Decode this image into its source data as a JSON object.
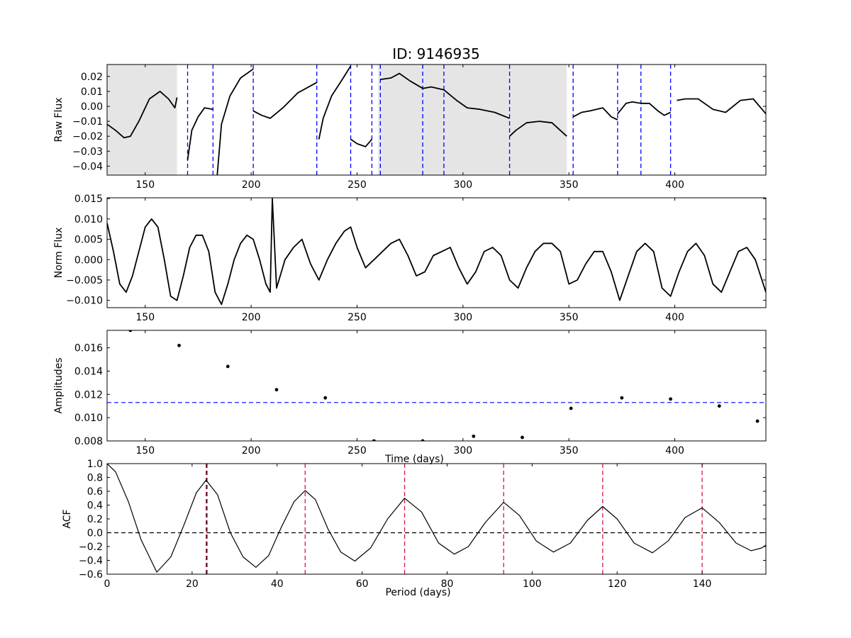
{
  "figure": {
    "title": "ID: 9146935"
  },
  "chart_data": [
    {
      "id": "raw",
      "type": "line",
      "ylabel": "Raw Flux",
      "xlabel": "",
      "xlim": [
        132,
        443
      ],
      "ylim": [
        -0.046,
        0.028
      ],
      "xticks": [
        150,
        200,
        250,
        300,
        350,
        400
      ],
      "xtick_labels": [
        "150",
        "200",
        "250",
        "300",
        "350",
        "400"
      ],
      "yticks": [
        -0.04,
        -0.03,
        -0.02,
        -0.01,
        0.0,
        0.01,
        0.02
      ],
      "ytick_labels": [
        "−0.04",
        "−0.03",
        "−0.02",
        "−0.01",
        "0.00",
        "0.01",
        "0.02"
      ],
      "shaded_spans": [
        [
          132,
          165
        ],
        [
          260,
          349
        ]
      ],
      "vlines": [
        170,
        182,
        201,
        231,
        247,
        257,
        261,
        281,
        291,
        322,
        352,
        373,
        384,
        398
      ],
      "vline_color": "#0000ff",
      "line_color": "#000000",
      "segments": [
        {
          "x": [
            132,
            136,
            140,
            143,
            147,
            152,
            157,
            161,
            164,
            165
          ],
          "y": [
            -0.012,
            -0.016,
            -0.021,
            -0.02,
            -0.01,
            0.005,
            0.01,
            0.005,
            -0.001,
            0.006
          ]
        },
        {
          "x": [
            170,
            172,
            175,
            178,
            182
          ],
          "y": [
            -0.036,
            -0.016,
            -0.007,
            -0.001,
            -0.002
          ]
        },
        {
          "x": [
            184,
            186,
            190,
            195,
            201
          ],
          "y": [
            -0.046,
            -0.012,
            0.007,
            0.019,
            0.025
          ]
        },
        {
          "x": [
            201,
            205,
            209,
            215,
            222,
            231
          ],
          "y": [
            -0.003,
            -0.006,
            -0.008,
            -0.001,
            0.009,
            0.016
          ]
        },
        {
          "x": [
            232,
            234,
            238,
            243,
            247
          ],
          "y": [
            -0.022,
            -0.008,
            0.007,
            0.018,
            0.027
          ]
        },
        {
          "x": [
            247,
            250,
            254,
            257
          ],
          "y": [
            -0.022,
            -0.025,
            -0.027,
            -0.022
          ]
        },
        {
          "x": [
            261,
            266,
            270,
            275,
            281
          ],
          "y": [
            0.018,
            0.019,
            0.022,
            0.017,
            0.012
          ]
        },
        {
          "x": [
            281,
            285,
            291
          ],
          "y": [
            0.012,
            0.013,
            0.011
          ]
        },
        {
          "x": [
            291,
            297,
            302,
            308,
            315,
            322
          ],
          "y": [
            0.011,
            0.004,
            -0.001,
            -0.002,
            -0.004,
            -0.008
          ]
        },
        {
          "x": [
            322,
            325,
            330,
            336,
            342,
            349
          ],
          "y": [
            -0.02,
            -0.016,
            -0.011,
            -0.01,
            -0.011,
            -0.02
          ]
        },
        {
          "x": [
            352,
            356,
            360,
            366,
            370,
            373
          ],
          "y": [
            -0.007,
            -0.004,
            -0.003,
            -0.001,
            -0.007,
            -0.009
          ]
        },
        {
          "x": [
            373,
            377,
            380,
            384
          ],
          "y": [
            -0.005,
            0.002,
            0.003,
            0.002
          ]
        },
        {
          "x": [
            384,
            388,
            392,
            395,
            398
          ],
          "y": [
            0.002,
            0.002,
            -0.003,
            -0.006,
            -0.004
          ]
        },
        {
          "x": [
            401,
            405,
            411,
            418,
            424,
            431,
            437,
            443
          ],
          "y": [
            0.004,
            0.005,
            0.005,
            -0.002,
            -0.004,
            0.004,
            0.005,
            -0.005
          ]
        }
      ]
    },
    {
      "id": "norm",
      "type": "line",
      "ylabel": "Norm Flux",
      "xlabel": "",
      "xlim": [
        132,
        443
      ],
      "ylim": [
        -0.0118,
        0.0152
      ],
      "xticks": [
        150,
        200,
        250,
        300,
        350,
        400
      ],
      "xtick_labels": [
        "150",
        "200",
        "250",
        "300",
        "350",
        "400"
      ],
      "yticks": [
        -0.01,
        -0.005,
        0.0,
        0.005,
        0.01,
        0.015
      ],
      "ytick_labels": [
        "−0.010",
        "−0.005",
        "0.000",
        "0.005",
        "0.010",
        "0.015"
      ],
      "line_color": "#000000",
      "x": [
        132,
        135,
        138,
        141,
        144,
        147,
        150,
        153,
        156,
        159,
        162,
        165,
        168,
        171,
        174,
        177,
        180,
        183,
        186,
        189,
        192,
        195,
        198,
        201,
        204,
        207,
        209,
        210,
        212,
        216,
        220,
        224,
        228,
        232,
        236,
        240,
        244,
        247,
        250,
        254,
        258,
        262,
        266,
        270,
        274,
        278,
        282,
        286,
        290,
        294,
        298,
        302,
        306,
        310,
        314,
        318,
        322,
        326,
        330,
        334,
        338,
        342,
        346,
        350,
        354,
        358,
        362,
        366,
        370,
        374,
        378,
        382,
        386,
        390,
        394,
        398,
        402,
        406,
        410,
        414,
        418,
        422,
        426,
        430,
        434,
        438,
        443
      ],
      "y": [
        0.009,
        0.002,
        -0.006,
        -0.008,
        -0.004,
        0.002,
        0.008,
        0.01,
        0.008,
        0.0,
        -0.009,
        -0.01,
        -0.004,
        0.003,
        0.006,
        0.006,
        0.002,
        -0.008,
        -0.011,
        -0.006,
        0.0,
        0.004,
        0.006,
        0.005,
        0.0,
        -0.006,
        -0.008,
        0.015,
        -0.007,
        0.0,
        0.003,
        0.005,
        -0.001,
        -0.005,
        0.0,
        0.004,
        0.007,
        0.008,
        0.003,
        -0.002,
        0.0,
        0.002,
        0.004,
        0.005,
        0.001,
        -0.004,
        -0.003,
        0.001,
        0.002,
        0.003,
        -0.002,
        -0.006,
        -0.003,
        0.002,
        0.003,
        0.001,
        -0.005,
        -0.007,
        -0.002,
        0.002,
        0.004,
        0.004,
        0.002,
        -0.006,
        -0.005,
        -0.001,
        0.002,
        0.002,
        -0.003,
        -0.01,
        -0.004,
        0.002,
        0.004,
        0.002,
        -0.007,
        -0.009,
        -0.003,
        0.002,
        0.004,
        0.001,
        -0.006,
        -0.008,
        -0.003,
        0.002,
        0.003,
        0.0,
        -0.008
      ]
    },
    {
      "id": "amp",
      "type": "scatter",
      "ylabel": "Amplitudes",
      "xlabel": "Time (days)",
      "xlim": [
        132,
        443
      ],
      "ylim": [
        0.008,
        0.0175
      ],
      "xticks": [
        150,
        200,
        250,
        300,
        350,
        400
      ],
      "xtick_labels": [
        "150",
        "200",
        "250",
        "300",
        "350",
        "400"
      ],
      "yticks": [
        0.008,
        0.01,
        0.012,
        0.014,
        0.016
      ],
      "ytick_labels": [
        "0.008",
        "0.010",
        "0.012",
        "0.014",
        "0.016"
      ],
      "hline": 0.0113,
      "hline_color": "#0000ff",
      "points": {
        "x": [
          143,
          166,
          189,
          212,
          235,
          258,
          281,
          305,
          328,
          351,
          375,
          398,
          421,
          439
        ],
        "y": [
          0.0175,
          0.0162,
          0.0144,
          0.0124,
          0.0117,
          0.008,
          0.008,
          0.0084,
          0.0083,
          0.0108,
          0.0117,
          0.0116,
          0.011,
          0.0097
        ]
      }
    },
    {
      "id": "acf",
      "type": "line",
      "ylabel": "ACF",
      "xlabel": "Period (days)",
      "xlim": [
        0,
        155
      ],
      "ylim": [
        -0.6,
        1.0
      ],
      "xticks": [
        0,
        20,
        40,
        60,
        80,
        100,
        120,
        140
      ],
      "xtick_labels": [
        "0",
        "20",
        "40",
        "60",
        "80",
        "100",
        "120",
        "140"
      ],
      "yticks": [
        -0.6,
        -0.4,
        -0.2,
        0.0,
        0.2,
        0.4,
        0.6,
        0.8,
        1.0
      ],
      "ytick_labels": [
        "−0.6",
        "−0.4",
        "−0.2",
        "0.0",
        "0.2",
        "0.4",
        "0.6",
        "0.8",
        "1.0"
      ],
      "hline": 0.0,
      "hline_color": "#000000",
      "vlines": [
        23.3,
        46.6,
        70.0,
        93.3,
        116.6,
        140.0
      ],
      "vline_color": "#dc143c",
      "vline_black": 23.5,
      "line_color": "#000000",
      "x": [
        0,
        2,
        5,
        8,
        11.7,
        15,
        18,
        21,
        23.3,
        26,
        29,
        32,
        35,
        38,
        41,
        44,
        46.6,
        49,
        52,
        55,
        58.3,
        62,
        66,
        70,
        74,
        78,
        81.7,
        85,
        89,
        93.3,
        97,
        101,
        105,
        109,
        113,
        116.6,
        120,
        124,
        128.3,
        132,
        136,
        140,
        144,
        148,
        151.5,
        154,
        155
      ],
      "y": [
        1.0,
        0.88,
        0.45,
        -0.1,
        -0.57,
        -0.35,
        0.1,
        0.58,
        0.76,
        0.55,
        0.0,
        -0.35,
        -0.5,
        -0.33,
        0.08,
        0.45,
        0.61,
        0.48,
        0.05,
        -0.28,
        -0.41,
        -0.22,
        0.2,
        0.5,
        0.3,
        -0.15,
        -0.31,
        -0.2,
        0.15,
        0.44,
        0.25,
        -0.12,
        -0.28,
        -0.15,
        0.18,
        0.38,
        0.2,
        -0.15,
        -0.29,
        -0.12,
        0.22,
        0.36,
        0.15,
        -0.15,
        -0.26,
        -0.22,
        -0.18
      ]
    }
  ]
}
